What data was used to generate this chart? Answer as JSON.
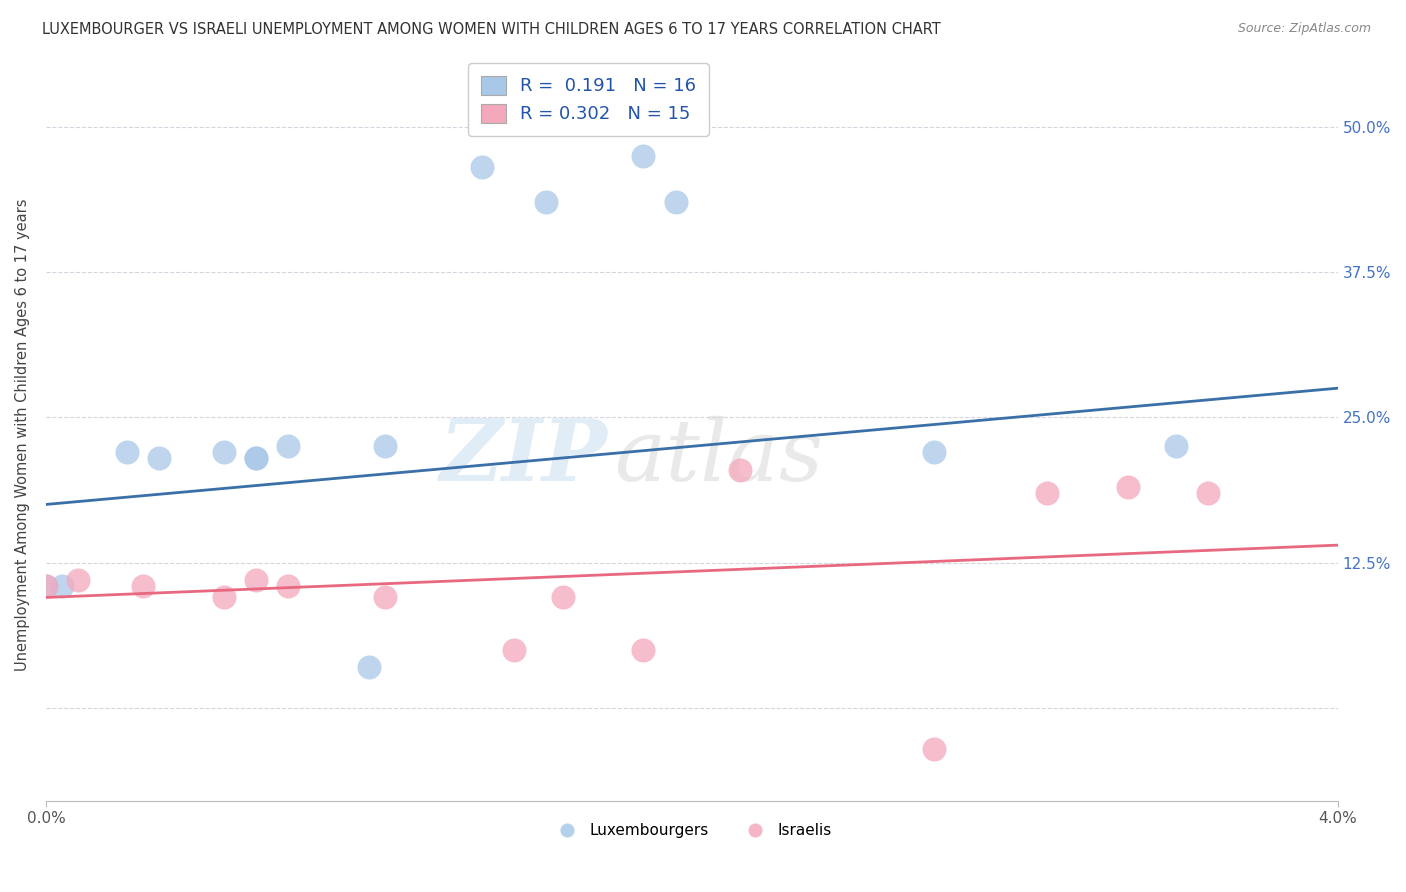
{
  "title": "LUXEMBOURGER VS ISRAELI UNEMPLOYMENT AMONG WOMEN WITH CHILDREN AGES 6 TO 17 YEARS CORRELATION CHART",
  "source": "Source: ZipAtlas.com",
  "ylabel": "Unemployment Among Women with Children Ages 6 to 17 years",
  "xlim": [
    0.0,
    4.0
  ],
  "ylim": [
    -8.0,
    55.0
  ],
  "xticks": [
    0.0,
    4.0
  ],
  "xticklabels": [
    "0.0%",
    "4.0%"
  ],
  "yticks": [
    0.0,
    12.5,
    25.0,
    37.5,
    50.0
  ],
  "ytick_labels_right": [
    "",
    "12.5%",
    "25.0%",
    "37.5%",
    "50.0%"
  ],
  "blue_color": "#A8C8E8",
  "pink_color": "#F4A8BC",
  "blue_line_color": "#3A6FA8",
  "pink_line_color": "#E86880",
  "lux_x": [
    0.0,
    0.05,
    0.25,
    0.35,
    0.55,
    0.65,
    0.65,
    0.75,
    1.0,
    1.05,
    1.35,
    1.55,
    1.85,
    1.95,
    2.75,
    3.5
  ],
  "lux_y": [
    10.5,
    10.5,
    22.0,
    21.5,
    22.0,
    21.5,
    21.5,
    22.5,
    3.5,
    22.5,
    46.5,
    43.5,
    47.5,
    43.5,
    22.0,
    22.5
  ],
  "isr_x": [
    0.0,
    0.1,
    0.3,
    0.55,
    0.65,
    0.75,
    1.05,
    1.45,
    1.6,
    1.85,
    2.15,
    2.75,
    3.1,
    3.35,
    3.6
  ],
  "isr_y": [
    10.5,
    11.0,
    10.5,
    9.5,
    11.0,
    10.5,
    9.5,
    5.0,
    9.5,
    5.0,
    20.5,
    -3.5,
    18.5,
    19.0,
    18.5
  ],
  "lux_R": 0.191,
  "lux_N": 16,
  "isr_R": 0.302,
  "isr_N": 15,
  "lux_trend_x": [
    0.0,
    4.0
  ],
  "lux_trend_y": [
    17.5,
    27.5
  ],
  "isr_trend_x": [
    0.0,
    4.0
  ],
  "isr_trend_y": [
    9.5,
    14.0
  ],
  "watermark_top": "ZIP",
  "watermark_bottom": "atlas",
  "legend_labels": [
    "Luxembourgers",
    "Israelis"
  ],
  "background_color": "#ffffff",
  "grid_color": "#d5d5e0"
}
